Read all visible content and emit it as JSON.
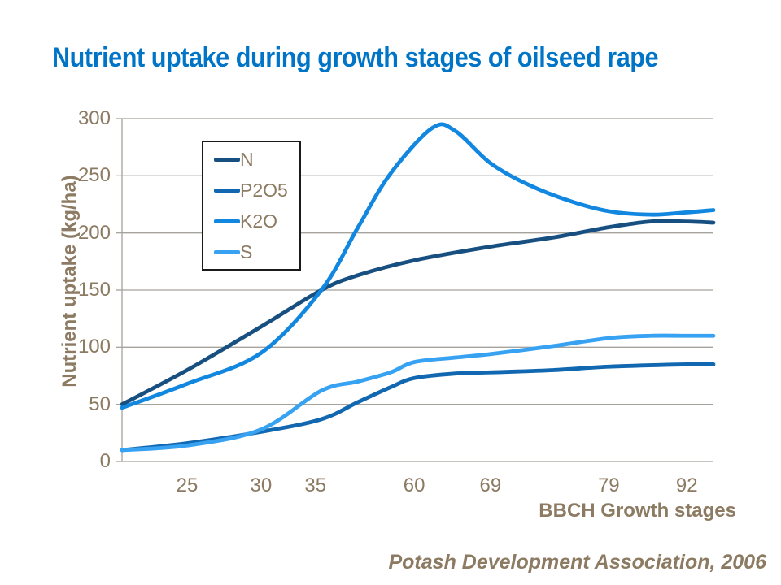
{
  "slide": {
    "title": "Nutrient uptake during growth stages of oilseed rape",
    "footer": "Potash Development Association, 2006"
  },
  "colors": {
    "title": "#0074C6",
    "axis_text": "#8C7B62",
    "gridline": "#A6A29C",
    "legend_border": "#1A1A1A",
    "background": "#FFFFFF"
  },
  "chart_data": {
    "type": "line",
    "title": "Nutrient uptake during growth stages of oilseed rape",
    "xlabel": "BBCH Growth stages",
    "ylabel": "Nutrient uptake (kg/ha)",
    "ylim": [
      0,
      300
    ],
    "y_ticks": [
      0,
      50,
      100,
      150,
      200,
      250,
      300
    ],
    "x_ticks": [
      {
        "label": "25",
        "t": 11
      },
      {
        "label": "30",
        "t": 23.5
      },
      {
        "label": "35",
        "t": 32.7
      },
      {
        "label": "60",
        "t": 49.4
      },
      {
        "label": "69",
        "t": 62.3
      },
      {
        "label": "79",
        "t": 82.3
      },
      {
        "label": "92",
        "t": 95.5
      }
    ],
    "x_scale_note": "t = position along x-axis in percent of plot width; axis spacing of BBCH stages is non-linear",
    "grid": "horizontal",
    "legend_position": "inside-upper-left",
    "series": [
      {
        "name": "N",
        "color": "#174F80",
        "points": [
          [
            0,
            50
          ],
          [
            11,
            80
          ],
          [
            23.5,
            118
          ],
          [
            33.7,
            150
          ],
          [
            39.9,
            163
          ],
          [
            49.4,
            176
          ],
          [
            62.3,
            188
          ],
          [
            72.9,
            196
          ],
          [
            82.3,
            205
          ],
          [
            89.4,
            210
          ],
          [
            95.5,
            210
          ],
          [
            100,
            209
          ]
        ]
      },
      {
        "name": "P2O5",
        "color": "#1268B0",
        "points": [
          [
            0,
            10
          ],
          [
            11,
            16
          ],
          [
            23.5,
            26
          ],
          [
            33.7,
            37
          ],
          [
            39.9,
            52
          ],
          [
            45.4,
            65
          ],
          [
            49.4,
            73
          ],
          [
            56.4,
            77
          ],
          [
            62.3,
            78
          ],
          [
            72.9,
            80
          ],
          [
            82.3,
            83
          ],
          [
            95.5,
            85
          ],
          [
            100,
            85
          ]
        ]
      },
      {
        "name": "K2O",
        "color": "#1287E0",
        "points": [
          [
            0,
            47
          ],
          [
            11,
            68
          ],
          [
            23.5,
            95
          ],
          [
            33.7,
            150
          ],
          [
            39.9,
            205
          ],
          [
            45.4,
            252
          ],
          [
            52.5,
            292
          ],
          [
            56.4,
            289
          ],
          [
            62.3,
            261
          ],
          [
            68.8,
            242
          ],
          [
            75.7,
            228
          ],
          [
            82.3,
            219
          ],
          [
            89.4,
            216
          ],
          [
            95.5,
            218
          ],
          [
            100,
            220
          ]
        ]
      },
      {
        "name": "S",
        "color": "#38A2F2",
        "points": [
          [
            0,
            10
          ],
          [
            11,
            14
          ],
          [
            23.5,
            28
          ],
          [
            33.7,
            62
          ],
          [
            39.9,
            70
          ],
          [
            45.4,
            78
          ],
          [
            49.4,
            87
          ],
          [
            56.4,
            91
          ],
          [
            62.3,
            94
          ],
          [
            72.9,
            101
          ],
          [
            82.3,
            108
          ],
          [
            89.4,
            110
          ],
          [
            95.5,
            110
          ],
          [
            100,
            110
          ]
        ]
      }
    ]
  }
}
